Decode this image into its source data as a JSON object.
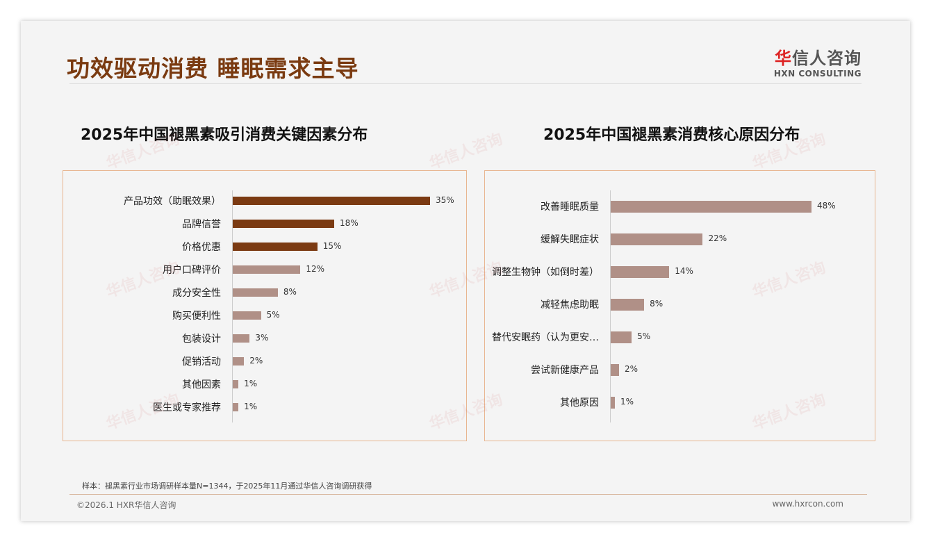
{
  "header": {
    "title": "功效驱动消费 睡眠需求主导",
    "logo_cn_accent": "华",
    "logo_cn": "信人咨询",
    "logo_en": "HXN CONSULTING"
  },
  "chart_data": [
    {
      "type": "bar",
      "orientation": "horizontal",
      "title": "2025年中国褪黑素吸引消费关键因素分布",
      "unit": "%",
      "categories": [
        "产品功效（助眠效果）",
        "品牌信誉",
        "价格优惠",
        "用户口碑评价",
        "成分安全性",
        "购买便利性",
        "包装设计",
        "促销活动",
        "其他因素",
        "医生或专家推荐"
      ],
      "values": [
        35,
        18,
        15,
        12,
        8,
        5,
        3,
        2,
        1,
        1
      ],
      "colors": [
        "#7b3a12",
        "#7b3a12",
        "#7b3a12",
        "#b09087",
        "#b09087",
        "#b09087",
        "#b09087",
        "#b09087",
        "#b09087",
        "#b09087"
      ],
      "xlim": [
        0,
        35
      ]
    },
    {
      "type": "bar",
      "orientation": "horizontal",
      "title": "2025年中国褪黑素消费核心原因分布",
      "unit": "%",
      "categories": [
        "改善睡眠质量",
        "缓解失眠症状",
        "调整生物钟（如倒时差）",
        "减轻焦虑助眠",
        "替代安眠药（认为更安…",
        "尝试新健康产品",
        "其他原因"
      ],
      "values": [
        48,
        22,
        14,
        8,
        5,
        2,
        1
      ],
      "colors": [
        "#b09087",
        "#b09087",
        "#b09087",
        "#b09087",
        "#b09087",
        "#b09087",
        "#b09087"
      ],
      "xlim": [
        0,
        48
      ]
    }
  ],
  "footer": {
    "note": "样本：褪黑素行业市场调研样本量N=1344，于2025年11月通过华信人咨询调研获得",
    "copyright": "©2026.1 HXR华信人咨询",
    "url": "www.hxrcon.com"
  }
}
